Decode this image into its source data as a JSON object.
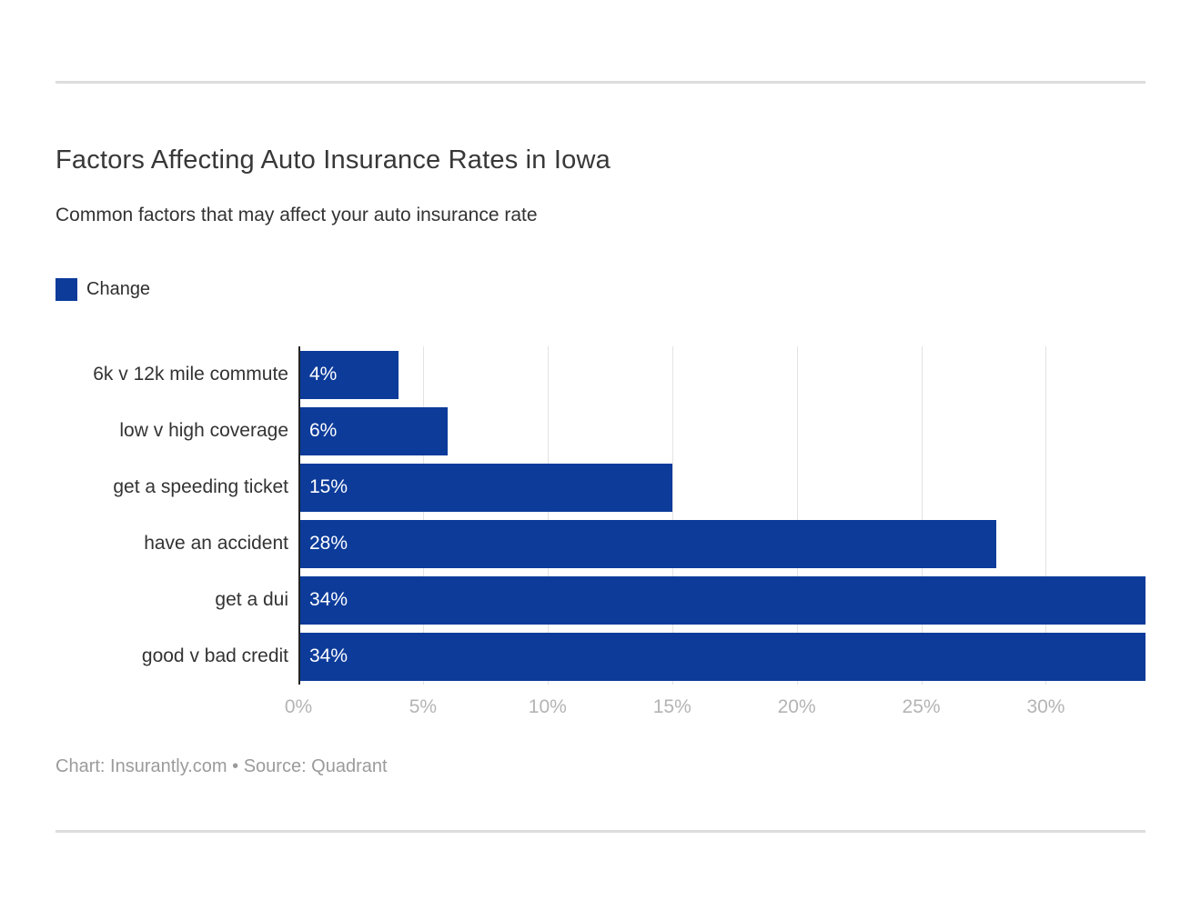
{
  "page": {
    "title": "Factors Affecting Auto Insurance Rates in Iowa",
    "subtitle": "Common factors that may affect your auto insurance rate",
    "footer": "Chart: Insurantly.com • Source: Quadrant"
  },
  "legend": {
    "label": "Change"
  },
  "chart_data": {
    "type": "bar",
    "orientation": "horizontal",
    "title": "Factors Affecting Auto Insurance Rates in Iowa",
    "subtitle": "Common factors that may affect your auto insurance rate",
    "categories": [
      "6k v 12k mile commute",
      "low v high coverage",
      "get a speeding ticket",
      "have an accident",
      "get a dui",
      "good v bad credit"
    ],
    "series": [
      {
        "name": "Change",
        "values": [
          4,
          6,
          15,
          28,
          34,
          34
        ]
      }
    ],
    "value_labels": [
      "4%",
      "6%",
      "15%",
      "28%",
      "34%",
      "34%"
    ],
    "xlim": [
      0,
      34
    ],
    "x_ticks": [
      0,
      5,
      10,
      15,
      20,
      25,
      30
    ],
    "x_tick_labels": [
      "0%",
      "5%",
      "10%",
      "15%",
      "20%",
      "25%",
      "30%"
    ],
    "bar_color": "#0c3b9a",
    "grid": true,
    "gridline_color": "#e3e3e3",
    "axis_line_color": "#242424",
    "legend_position": "top-left"
  }
}
